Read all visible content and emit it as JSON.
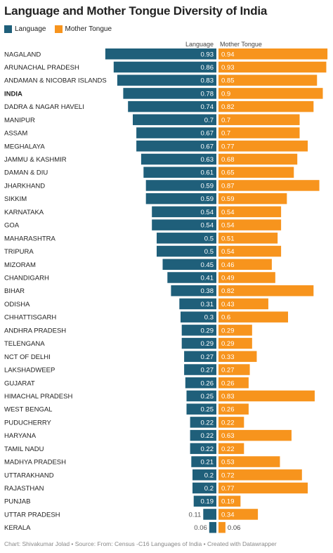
{
  "title": "Language and Mother Tongue Diversity of India",
  "legend": [
    {
      "label": "Language",
      "color": "#1f5f7a"
    },
    {
      "label": "Mother Tongue",
      "color": "#f7941d"
    }
  ],
  "column_headers": {
    "left": "Language",
    "right": "Mother Tongue"
  },
  "footer": "Chart: Shivakumar Jolad • Source: From: Census -C16 Languages of India • Created with Datawrapper",
  "chart_data": {
    "type": "bar",
    "orientation": "horizontal",
    "layout": "butterfly",
    "categories": [
      "NAGALAND",
      "ARUNACHAL PRADESH",
      "ANDAMAN & NICOBAR ISLANDS",
      "INDIA",
      "DADRA & NAGAR HAVELI",
      "MANIPUR",
      "ASSAM",
      "MEGHALAYA",
      "JAMMU & KASHMIR",
      "DAMAN & DIU",
      "JHARKHAND",
      "SIKKIM",
      "KARNATAKA",
      "GOA",
      "MAHARASHTRA",
      "TRIPURA",
      "MIZORAM",
      "CHANDIGARH",
      "BIHAR",
      "ODISHA",
      "CHHATTISGARH",
      "ANDHRA PRADESH",
      "TELENGANA",
      "NCT OF DELHI",
      "LAKSHADWEEP",
      "GUJARAT",
      "HIMACHAL PRADESH",
      "WEST BENGAL",
      "PUDUCHERRY",
      "HARYANA",
      "TAMIL NADU",
      "MADHYA PRADESH",
      "UTTARAKHAND",
      "RAJASTHAN",
      "PUNJAB",
      "UTTAR PRADESH",
      "KERALA"
    ],
    "bold_categories": [
      "INDIA"
    ],
    "series": [
      {
        "name": "Language",
        "color": "#1f5f7a",
        "values": [
          0.93,
          0.86,
          0.83,
          0.78,
          0.74,
          0.7,
          0.67,
          0.67,
          0.63,
          0.61,
          0.59,
          0.59,
          0.54,
          0.54,
          0.5,
          0.5,
          0.45,
          0.41,
          0.38,
          0.31,
          0.3,
          0.29,
          0.29,
          0.27,
          0.27,
          0.26,
          0.25,
          0.25,
          0.22,
          0.22,
          0.22,
          0.21,
          0.2,
          0.2,
          0.19,
          0.11,
          0.06
        ]
      },
      {
        "name": "Mother Tongue",
        "color": "#f7941d",
        "values": [
          0.94,
          0.93,
          0.85,
          0.9,
          0.82,
          0.7,
          0.7,
          0.77,
          0.68,
          0.65,
          0.87,
          0.59,
          0.54,
          0.54,
          0.51,
          0.54,
          0.46,
          0.49,
          0.82,
          0.43,
          0.6,
          0.29,
          0.29,
          0.33,
          0.27,
          0.26,
          0.83,
          0.26,
          0.22,
          0.63,
          0.22,
          0.53,
          0.72,
          0.77,
          0.19,
          0.34,
          0.06
        ]
      }
    ],
    "xlim": [
      0,
      1
    ]
  }
}
